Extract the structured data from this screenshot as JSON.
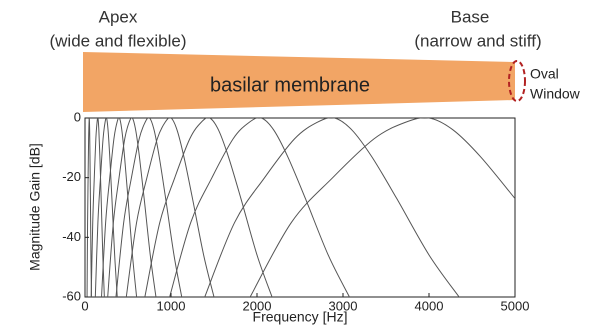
{
  "diagram": {
    "apex": "Apex",
    "apex_note": "(wide and flexible)",
    "base": "Base",
    "base_note": "(narrow and stiff)",
    "membrane": "basilar membrane",
    "oval": "Oval",
    "window": "Window"
  },
  "chart_data": {
    "type": "line",
    "x_label": "Frequency [Hz]",
    "y_label": "Magnitude Gain [dB]",
    "xlim": [
      0,
      5000
    ],
    "ylim": [
      -60,
      0
    ],
    "xticks": [
      0,
      1000,
      2000,
      3000,
      4000,
      5000
    ],
    "yticks": [
      0,
      -20,
      -40,
      -60
    ],
    "series": [
      {
        "color": "#555555",
        "x": [
          24,
          30,
          36,
          42,
          47,
          50,
          54,
          58,
          63,
          69,
          75
        ],
        "values": [
          -60,
          -35,
          -20,
          -7,
          -1.5,
          0,
          -4,
          -13,
          -27,
          -46,
          -60
        ]
      },
      {
        "color": "#555555",
        "x": [
          72,
          90,
          108,
          126,
          140,
          150,
          161,
          173,
          188,
          207,
          225
        ],
        "values": [
          -60,
          -35,
          -20,
          -7,
          -1.5,
          0,
          -4,
          -13,
          -27,
          -46,
          -60
        ]
      },
      {
        "color": "#555555",
        "x": [
          120,
          150,
          180,
          210,
          233,
          250,
          268,
          288,
          313,
          345,
          375
        ],
        "values": [
          -60,
          -35,
          -20,
          -7,
          -1.5,
          0,
          -4,
          -13,
          -27,
          -46,
          -60
        ]
      },
      {
        "color": "#555555",
        "x": [
          192,
          240,
          288,
          336,
          372,
          400,
          428,
          460,
          500,
          552,
          600
        ],
        "values": [
          -60,
          -35,
          -20,
          -7,
          -1.5,
          0,
          -4,
          -13,
          -27,
          -46,
          -60
        ]
      },
      {
        "color": "#555555",
        "x": [
          264,
          330,
          396,
          462,
          512,
          550,
          589,
          633,
          688,
          759,
          825
        ],
        "values": [
          -60,
          -35,
          -20,
          -7,
          -1.5,
          0,
          -4,
          -13,
          -27,
          -46,
          -60
        ]
      },
      {
        "color": "#555555",
        "x": [
          360,
          450,
          540,
          630,
          698,
          750,
          803,
          863,
          938,
          1035,
          1125
        ],
        "values": [
          -60,
          -35,
          -20,
          -7,
          -1.5,
          0,
          -4,
          -13,
          -27,
          -46,
          -60
        ]
      },
      {
        "color": "#555555",
        "x": [
          480,
          600,
          720,
          840,
          930,
          1000,
          1070,
          1150,
          1250,
          1380,
          1500
        ],
        "values": [
          -60,
          -35,
          -20,
          -7,
          -1.5,
          0,
          -4,
          -13,
          -27,
          -46,
          -60
        ]
      },
      {
        "color": "#555555",
        "x": [
          696,
          870,
          1044,
          1218,
          1349,
          1450,
          1552,
          1668,
          1813,
          2001,
          2175
        ],
        "values": [
          -60,
          -35,
          -20,
          -7,
          -1.5,
          0,
          -4,
          -13,
          -27,
          -46,
          -60
        ]
      },
      {
        "color": "#555555",
        "x": [
          984,
          1230,
          1476,
          1722,
          1907,
          2050,
          2194,
          2358,
          2563,
          2829,
          3075
        ],
        "values": [
          -60,
          -35,
          -20,
          -7,
          -1.5,
          0,
          -4,
          -13,
          -27,
          -46,
          -60
        ]
      },
      {
        "color": "#555555",
        "x": [
          1392,
          1740,
          2088,
          2436,
          2697,
          2900,
          3103,
          3335,
          3625,
          4002,
          4350
        ],
        "values": [
          -60,
          -35,
          -20,
          -7,
          -1.5,
          0,
          -4,
          -13,
          -27,
          -46,
          -60
        ]
      },
      {
        "color": "#555555",
        "x": [
          1920,
          2400,
          2880,
          3360,
          3720,
          4000,
          4280,
          4600,
          5000
        ],
        "values": [
          -60,
          -35,
          -20,
          -7,
          -1.5,
          0,
          -4,
          -13,
          -27
        ]
      }
    ]
  }
}
